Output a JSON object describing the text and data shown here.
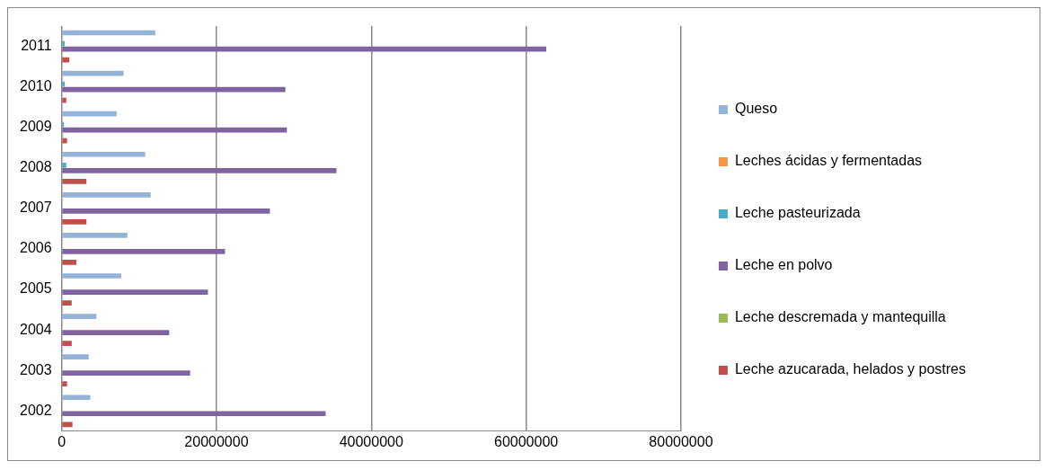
{
  "chart_data": {
    "type": "bar",
    "orientation": "horizontal",
    "categories": [
      "2011",
      "2010",
      "2009",
      "2008",
      "2007",
      "2006",
      "2005",
      "2004",
      "2003",
      "2002"
    ],
    "series": [
      {
        "name": "Queso",
        "color": "#95b3d7",
        "values": [
          12100000,
          8000000,
          7100000,
          10800000,
          11500000,
          8500000,
          7700000,
          4500000,
          3500000,
          3700000
        ]
      },
      {
        "name": "Leches ácidas y fermentadas",
        "color": "#f79646",
        "values": [
          0,
          0,
          0,
          0,
          0,
          0,
          0,
          0,
          0,
          0
        ]
      },
      {
        "name": "Leche pasteurizada",
        "color": "#4bacc6",
        "values": [
          400000,
          400000,
          300000,
          600000,
          0,
          0,
          0,
          0,
          0,
          0
        ]
      },
      {
        "name": "Leche en polvo",
        "color": "#8064a2",
        "values": [
          62600000,
          28900000,
          29100000,
          35500000,
          26900000,
          21100000,
          18900000,
          13900000,
          16600000,
          34100000
        ]
      },
      {
        "name": "Leche descremada y mantequilla",
        "color": "#9bbb59",
        "values": [
          0,
          0,
          200000,
          0,
          0,
          0,
          0,
          0,
          0,
          0
        ]
      },
      {
        "name": "Leche azucarada, helados y postres",
        "color": "#c0504d",
        "values": [
          1000000,
          600000,
          700000,
          3200000,
          3200000,
          1900000,
          1300000,
          1300000,
          700000,
          1400000
        ]
      }
    ],
    "xlim": [
      0,
      80000000
    ],
    "xticks": [
      0,
      20000000,
      40000000,
      60000000,
      80000000
    ],
    "grid": "x",
    "legend": "right"
  }
}
